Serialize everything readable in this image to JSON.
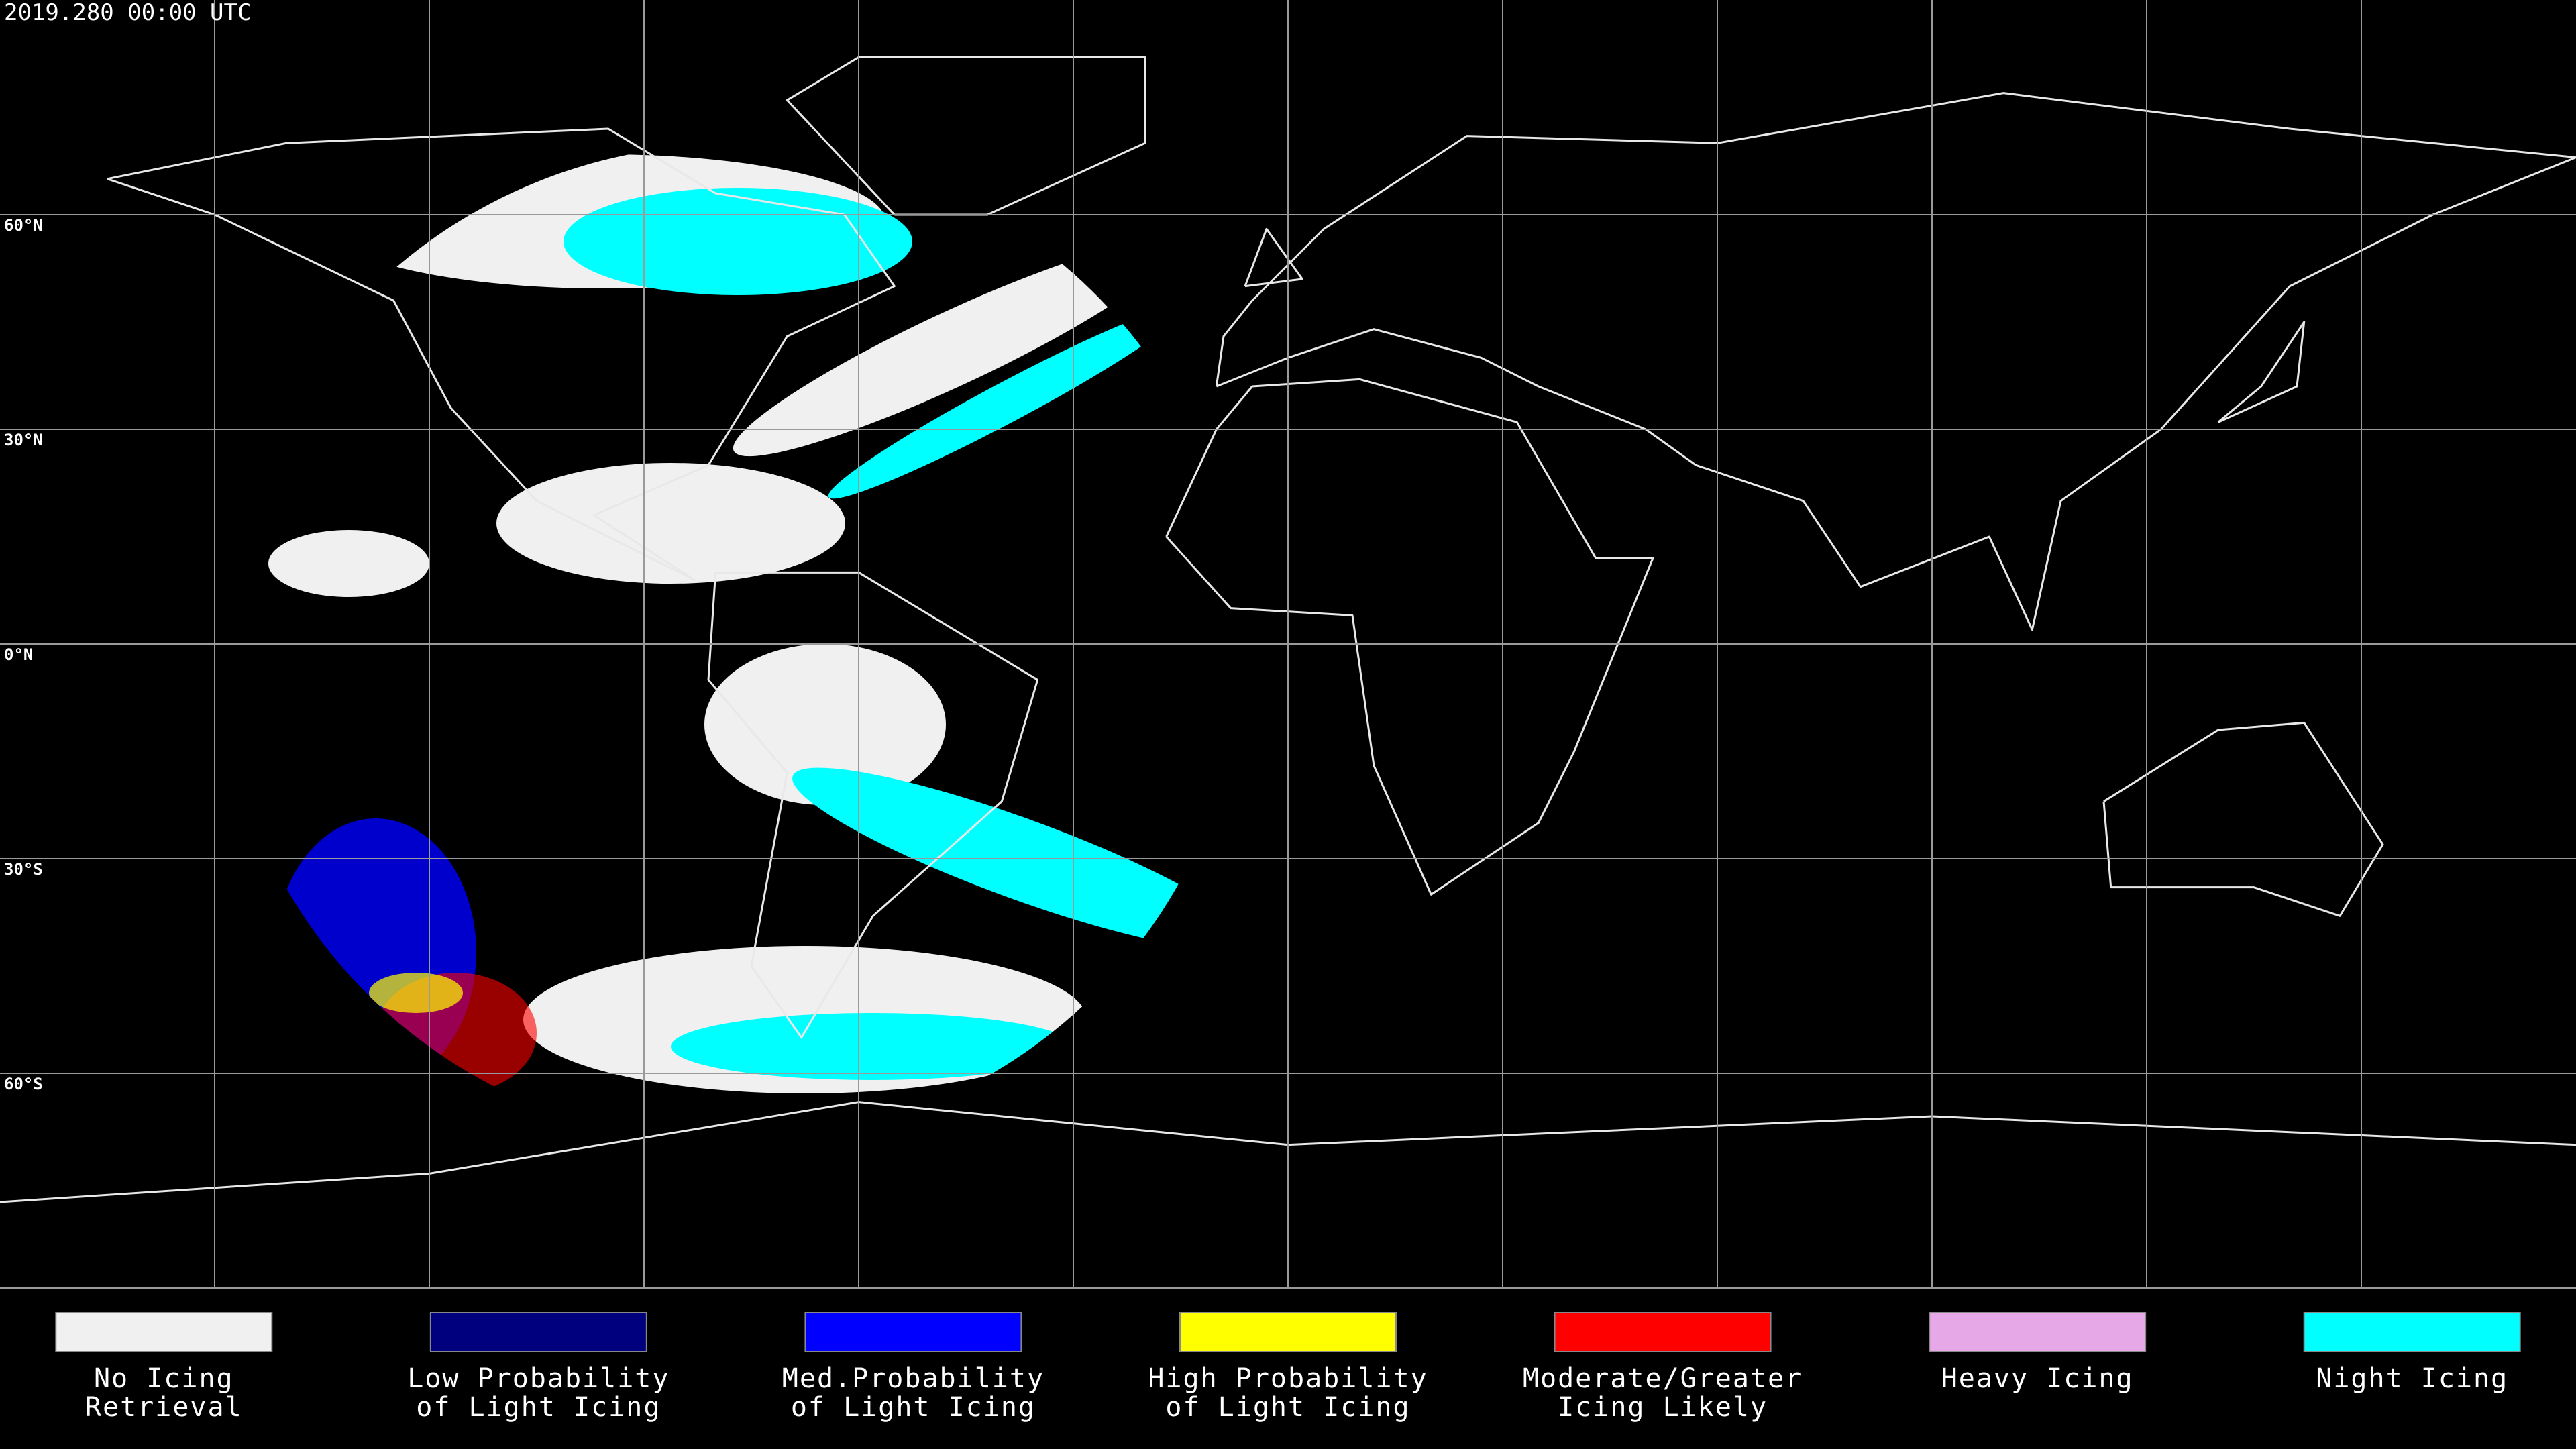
{
  "timestamp": "2019.280 00:00 UTC",
  "latitude_labels": [
    "60°N",
    "30°N",
    "0°N",
    "30°S",
    "60°S"
  ],
  "legend": [
    {
      "color": "#f0f0f0",
      "label": [
        "No Icing",
        "Retrieval"
      ]
    },
    {
      "color": "#00007f",
      "label": [
        "Low Probability",
        "of Light Icing"
      ]
    },
    {
      "color": "#0000ff",
      "label": [
        "Med.Probability",
        "of Light Icing"
      ]
    },
    {
      "color": "#ffff00",
      "label": [
        "High Probability",
        "of Light Icing"
      ]
    },
    {
      "color": "#ff0000",
      "label": [
        "Moderate/Greater",
        "Icing Likely"
      ]
    },
    {
      "color": "#e6a8e6",
      "label": [
        "Heavy Icing"
      ]
    },
    {
      "color": "#00ffff",
      "label": [
        "Night Icing"
      ]
    }
  ]
}
